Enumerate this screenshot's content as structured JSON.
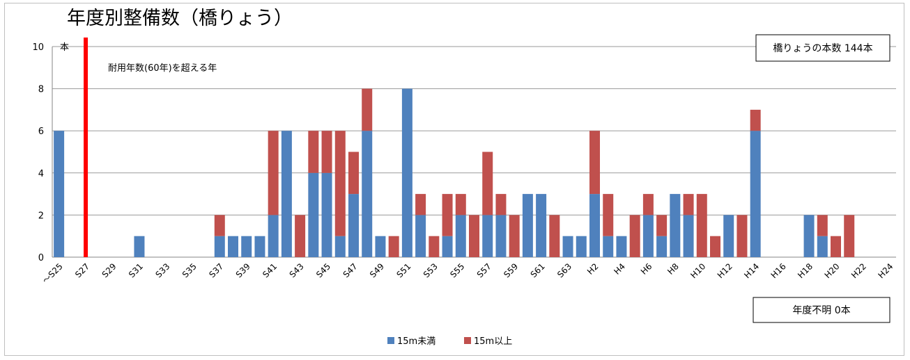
{
  "chart_data": {
    "type": "bar",
    "stacked": true,
    "title": "年度別整備数（橋りょう）",
    "y_unit_label": "本",
    "ylim": [
      0,
      10
    ],
    "yticks": [
      0,
      2,
      4,
      6,
      8,
      10
    ],
    "grid": true,
    "legend_position": "bottom",
    "x_tick_labels": [
      "～S25",
      "S27",
      "S29",
      "S31",
      "S33",
      "S35",
      "S37",
      "S39",
      "S41",
      "S43",
      "S45",
      "S47",
      "S49",
      "S51",
      "S53",
      "S55",
      "S57",
      "S59",
      "S61",
      "S63",
      "H2",
      "H4",
      "H6",
      "H8",
      "H10",
      "H12",
      "H14",
      "H16",
      "H18",
      "H20",
      "H22",
      "H24"
    ],
    "categories": [
      "～S25",
      "S26",
      "S27",
      "S28",
      "S29",
      "S30",
      "S31",
      "S32",
      "S33",
      "S34",
      "S35",
      "S36",
      "S37",
      "S38",
      "S39",
      "S40",
      "S41",
      "S42",
      "S43",
      "S44",
      "S45",
      "S46",
      "S47",
      "S48",
      "S49",
      "S50",
      "S51",
      "S52",
      "S53",
      "S54",
      "S55",
      "S56",
      "S57",
      "S58",
      "S59",
      "S60",
      "S61",
      "S62",
      "S63",
      "H1",
      "H2",
      "H3",
      "H4",
      "H5",
      "H6",
      "H7",
      "H8",
      "H9",
      "H10",
      "H11",
      "H12",
      "H13",
      "H14",
      "H15",
      "H16",
      "H17",
      "H18",
      "H19",
      "H20",
      "H21",
      "H22",
      "H23",
      "H24"
    ],
    "series": [
      {
        "name": "15m未満",
        "color": "#4f81bd",
        "values": [
          6,
          0,
          0,
          0,
          0,
          0,
          1,
          0,
          0,
          0,
          0,
          0,
          1,
          1,
          1,
          1,
          2,
          6,
          0,
          4,
          4,
          1,
          3,
          6,
          1,
          0,
          8,
          2,
          0,
          1,
          2,
          0,
          2,
          2,
          0,
          3,
          3,
          0,
          1,
          1,
          3,
          1,
          1,
          0,
          2,
          1,
          3,
          2,
          0,
          0,
          2,
          0,
          6,
          0,
          0,
          0,
          2,
          1,
          0,
          0,
          0,
          0,
          0
        ]
      },
      {
        "name": "15m以上",
        "color": "#c0504d",
        "values": [
          0,
          0,
          0,
          0,
          0,
          0,
          0,
          0,
          0,
          0,
          0,
          0,
          1,
          0,
          0,
          0,
          4,
          0,
          2,
          2,
          2,
          5,
          2,
          2,
          0,
          1,
          0,
          1,
          1,
          2,
          1,
          2,
          3,
          1,
          2,
          0,
          0,
          2,
          0,
          0,
          3,
          2,
          0,
          2,
          1,
          1,
          0,
          1,
          3,
          1,
          0,
          2,
          1,
          0,
          0,
          0,
          0,
          1,
          1,
          2,
          0,
          0,
          0
        ]
      }
    ],
    "marker": {
      "category": "S27",
      "color": "#ff0000",
      "label": "耐用年数(60年)を超える年"
    },
    "annotations": {
      "total_box": "橋りょうの本数  144本",
      "unknown_box": "年度不明  0本"
    }
  }
}
